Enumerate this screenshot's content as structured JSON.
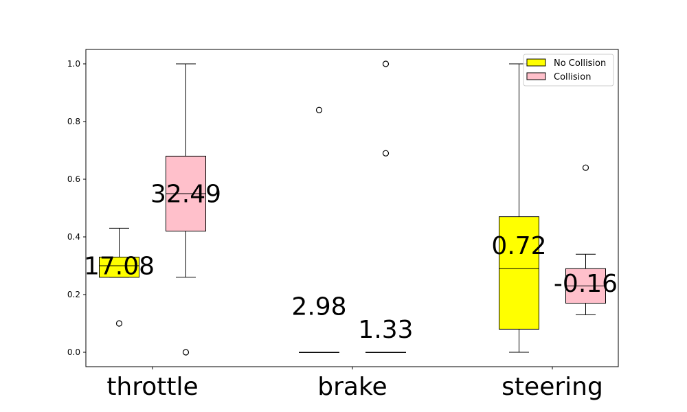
{
  "chart_data": {
    "type": "box",
    "categories": [
      "throttle",
      "brake",
      "steering"
    ],
    "ylim": [
      -0.05,
      1.05
    ],
    "yticks": [
      0.0,
      0.2,
      0.4,
      0.6,
      0.8,
      1.0
    ],
    "ytick_labels": [
      "0.0",
      "0.2",
      "0.4",
      "0.6",
      "0.8",
      "1.0"
    ],
    "legend": {
      "position": "upper-right",
      "entries": [
        {
          "name": "No Collision",
          "color": "#ffff00"
        },
        {
          "name": "Collision",
          "color": "#ffc0cb"
        }
      ]
    },
    "series": [
      {
        "name": "No Collision",
        "color": "#ffff00",
        "boxes": [
          {
            "category": "throttle",
            "whisker_low": 0.26,
            "q1": 0.26,
            "median": 0.3,
            "q3": 0.33,
            "whisker_high": 0.43,
            "outliers": [
              0.1
            ],
            "annotation": "17.08",
            "annotation_y": 0.27
          },
          {
            "category": "brake",
            "whisker_low": 0.0,
            "q1": 0.0,
            "median": 0.0,
            "q3": 0.0,
            "whisker_high": 0.0,
            "outliers": [
              0.84
            ],
            "annotation": "2.98",
            "annotation_y": 0.13
          },
          {
            "category": "steering",
            "whisker_low": 0.0,
            "q1": 0.08,
            "median": 0.29,
            "q3": 0.47,
            "whisker_high": 1.0,
            "outliers": [],
            "annotation": "0.72",
            "annotation_y": 0.34
          }
        ]
      },
      {
        "name": "Collision",
        "color": "#ffc0cb",
        "boxes": [
          {
            "category": "throttle",
            "whisker_low": 0.26,
            "q1": 0.42,
            "median": 0.55,
            "q3": 0.68,
            "whisker_high": 1.0,
            "outliers": [
              0.0
            ],
            "annotation": "32.49",
            "annotation_y": 0.52
          },
          {
            "category": "brake",
            "whisker_low": 0.0,
            "q1": 0.0,
            "median": 0.0,
            "q3": 0.0,
            "whisker_high": 0.0,
            "outliers": [
              0.69,
              1.0
            ],
            "annotation": "1.33",
            "annotation_y": 0.05
          },
          {
            "category": "steering",
            "whisker_low": 0.13,
            "q1": 0.17,
            "median": 0.23,
            "q3": 0.29,
            "whisker_high": 0.34,
            "outliers": [
              0.64
            ],
            "annotation": "-0.16",
            "annotation_y": 0.21
          }
        ]
      }
    ]
  }
}
